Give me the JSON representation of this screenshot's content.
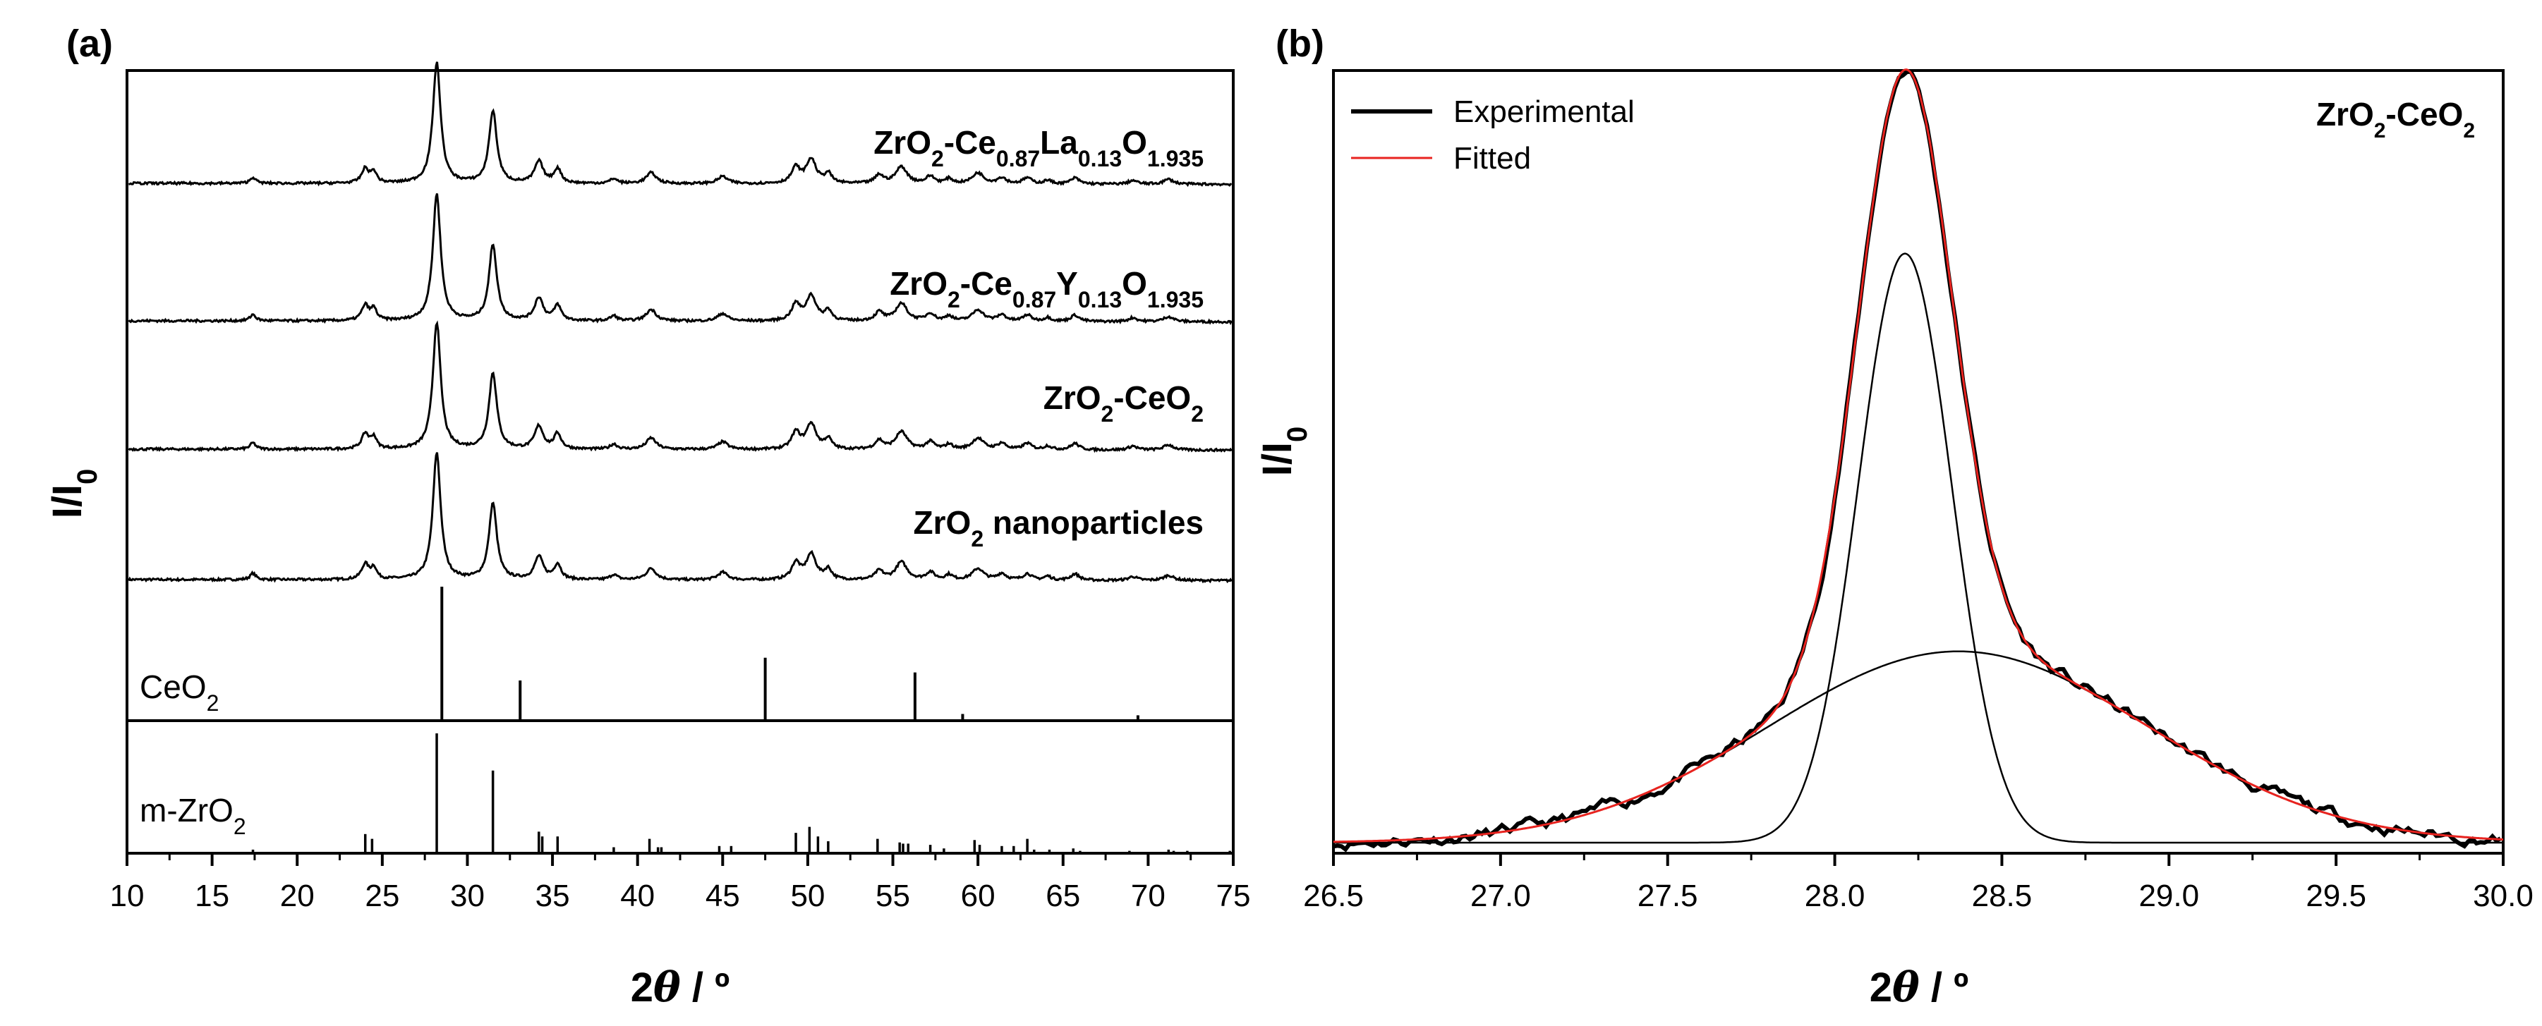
{
  "panel_a_label": "(a)",
  "panel_b_label": "(b)",
  "chart_data": [
    {
      "panel": "a",
      "type": "line",
      "xlabel": "2θ / º",
      "ylabel": "I/I₀",
      "xlim": [
        10,
        75
      ],
      "x_ticks": [
        "10",
        "15",
        "20",
        "25",
        "30",
        "35",
        "40",
        "45",
        "50",
        "55",
        "60",
        "65",
        "70",
        "75"
      ],
      "series": [
        {
          "name": "ZrO2 nanoparticles",
          "label_parts": [
            {
              "text": "ZrO",
              "sub": false
            },
            {
              "text": "2",
              "sub": true
            },
            {
              "text": " nanoparticles",
              "sub": false
            }
          ],
          "baseline": 0,
          "scale": 1.0
        },
        {
          "name": "ZrO2-CeO2",
          "label_parts": [
            {
              "text": "ZrO",
              "sub": false
            },
            {
              "text": "2",
              "sub": true
            },
            {
              "text": "-CeO",
              "sub": false
            },
            {
              "text": "2",
              "sub": true
            }
          ],
          "baseline": 1,
          "scale": 1.0
        },
        {
          "name": "ZrO2-Ce0.87Y0.13O1.935",
          "label_parts": [
            {
              "text": "ZrO",
              "sub": false
            },
            {
              "text": "2",
              "sub": true
            },
            {
              "text": "-Ce",
              "sub": false
            },
            {
              "text": "0.87",
              "sub": true
            },
            {
              "text": "Y",
              "sub": false
            },
            {
              "text": "0.13",
              "sub": true
            },
            {
              "text": "O",
              "sub": false
            },
            {
              "text": "1.935",
              "sub": true
            }
          ],
          "baseline": 2,
          "scale": 1.0
        },
        {
          "name": "ZrO2-Ce0.87La0.13O1.935",
          "label_parts": [
            {
              "text": "ZrO",
              "sub": false
            },
            {
              "text": "2",
              "sub": true
            },
            {
              "text": "-Ce",
              "sub": false
            },
            {
              "text": "0.87",
              "sub": true
            },
            {
              "text": "La",
              "sub": false
            },
            {
              "text": "0.13",
              "sub": true
            },
            {
              "text": "O",
              "sub": false
            },
            {
              "text": "1.935",
              "sub": true
            }
          ],
          "baseline": 3,
          "scale": 0.95
        }
      ],
      "peaks": [
        {
          "x": 17.4,
          "h": 0.05,
          "w": 0.4
        },
        {
          "x": 24.0,
          "h": 0.12,
          "w": 0.5
        },
        {
          "x": 24.5,
          "h": 0.09,
          "w": 0.4
        },
        {
          "x": 28.2,
          "h": 1.0,
          "w": 0.55
        },
        {
          "x": 31.5,
          "h": 0.6,
          "w": 0.55
        },
        {
          "x": 34.2,
          "h": 0.18,
          "w": 0.6
        },
        {
          "x": 35.3,
          "h": 0.12,
          "w": 0.5
        },
        {
          "x": 38.6,
          "h": 0.04,
          "w": 0.5
        },
        {
          "x": 40.8,
          "h": 0.09,
          "w": 0.7
        },
        {
          "x": 45.0,
          "h": 0.06,
          "w": 0.7
        },
        {
          "x": 49.3,
          "h": 0.13,
          "w": 0.6
        },
        {
          "x": 50.2,
          "h": 0.2,
          "w": 0.7
        },
        {
          "x": 51.2,
          "h": 0.08,
          "w": 0.5
        },
        {
          "x": 54.2,
          "h": 0.07,
          "w": 0.6
        },
        {
          "x": 55.5,
          "h": 0.14,
          "w": 0.8
        },
        {
          "x": 57.2,
          "h": 0.06,
          "w": 0.6
        },
        {
          "x": 58.3,
          "h": 0.04,
          "w": 0.5
        },
        {
          "x": 60.0,
          "h": 0.09,
          "w": 0.8
        },
        {
          "x": 61.4,
          "h": 0.05,
          "w": 0.6
        },
        {
          "x": 62.9,
          "h": 0.05,
          "w": 0.6
        },
        {
          "x": 64.1,
          "h": 0.03,
          "w": 0.5
        },
        {
          "x": 65.7,
          "h": 0.05,
          "w": 0.6
        },
        {
          "x": 69.1,
          "h": 0.03,
          "w": 0.6
        },
        {
          "x": 71.2,
          "h": 0.04,
          "w": 0.7
        }
      ],
      "reference_CeO2": {
        "label_parts": [
          {
            "text": "CeO",
            "sub": false
          },
          {
            "text": "2",
            "sub": true
          }
        ],
        "lines": [
          [
            28.5,
            100
          ],
          [
            33.1,
            30
          ],
          [
            47.5,
            47
          ],
          [
            56.3,
            36
          ],
          [
            59.1,
            5
          ],
          [
            69.4,
            4
          ]
        ]
      },
      "reference_mZrO2": {
        "label_parts": [
          {
            "text": "m-ZrO",
            "sub": false
          },
          {
            "text": "2",
            "sub": true
          }
        ],
        "lines": [
          [
            17.4,
            3
          ],
          [
            24.0,
            16
          ],
          [
            24.4,
            12
          ],
          [
            28.2,
            100
          ],
          [
            31.5,
            69
          ],
          [
            34.2,
            18
          ],
          [
            34.4,
            14
          ],
          [
            35.3,
            14
          ],
          [
            38.6,
            5
          ],
          [
            40.7,
            12
          ],
          [
            41.2,
            5
          ],
          [
            41.4,
            5
          ],
          [
            44.8,
            6
          ],
          [
            45.5,
            6
          ],
          [
            49.3,
            17
          ],
          [
            50.1,
            22
          ],
          [
            50.6,
            14
          ],
          [
            51.2,
            10
          ],
          [
            54.1,
            12
          ],
          [
            55.4,
            9
          ],
          [
            55.6,
            8
          ],
          [
            55.9,
            8
          ],
          [
            57.2,
            7
          ],
          [
            58.0,
            4
          ],
          [
            59.8,
            11
          ],
          [
            60.1,
            7
          ],
          [
            61.4,
            6
          ],
          [
            62.1,
            6
          ],
          [
            62.9,
            12
          ],
          [
            63.3,
            3
          ],
          [
            64.2,
            3
          ],
          [
            65.6,
            4
          ],
          [
            66.0,
            2
          ],
          [
            68.9,
            2
          ],
          [
            71.2,
            3
          ],
          [
            71.5,
            2
          ],
          [
            72.3,
            2
          ],
          [
            74.8,
            2
          ]
        ]
      }
    },
    {
      "panel": "b",
      "type": "line",
      "xlabel": "2θ / º",
      "ylabel": "I/I₀",
      "xlim": [
        26.5,
        30.0
      ],
      "x_ticks": [
        "26.5",
        "27.0",
        "27.5",
        "28.0",
        "28.5",
        "29.0",
        "29.5",
        "30.0"
      ],
      "annotation_parts": [
        {
          "text": "ZrO",
          "sub": false
        },
        {
          "text": "2",
          "sub": true
        },
        {
          "text": "-CeO",
          "sub": false
        },
        {
          "text": "2",
          "sub": true
        }
      ],
      "legend": [
        {
          "name": "Experimental",
          "color": "#000000"
        },
        {
          "name": "Fitted",
          "color": "#e8231f"
        }
      ],
      "components": [
        {
          "name": "narrow component",
          "center": 28.21,
          "amplitude": 0.77,
          "fwhm": 0.33
        },
        {
          "name": "broad component",
          "center": 28.37,
          "amplitude": 0.25,
          "fwhm": 1.34
        }
      ]
    }
  ]
}
